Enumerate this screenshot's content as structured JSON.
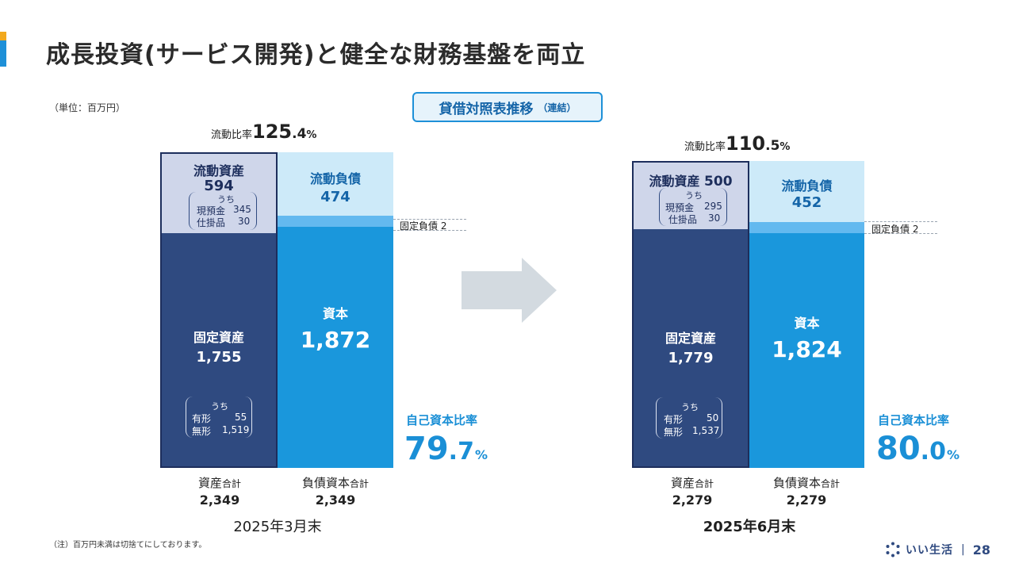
{
  "title": "成長投資(サービス開発)と健全な財務基盤を両立",
  "unit_note": "（単位：百万円）",
  "section_badge": {
    "main": "貸借対照表推移",
    "sub": "（連結）"
  },
  "labels": {
    "current_ratio": "流動比率",
    "current_assets": "流動資産",
    "current_liabilities": "流動負債",
    "fixed_assets": "固定資産",
    "fixed_liabilities": "固定負債",
    "equity": "資本",
    "of_which": "うち",
    "cash": "現預金",
    "wip": "仕掛品",
    "tangible": "有形",
    "intangible": "無形",
    "equity_ratio": "自己資本比率",
    "total_assets_main": "資産",
    "total_liab_eq_main": "負債資本",
    "total_suffix": "合計"
  },
  "colors": {
    "accent_orange": "#f2a91e",
    "accent_blue": "#1e90d8",
    "current_assets": "#cfd6ea",
    "fixed_assets": "#2f4a80",
    "current_liabilities": "#cdeaf9",
    "fixed_liabilities": "#63b9ef",
    "equity": "#1a97dc",
    "arrow": "#d3dae0"
  },
  "chart_data": {
    "type": "bar",
    "chart_kind": "balance-sheet-comparison",
    "periods": [
      {
        "period": "2025年3月末",
        "current_ratio": {
          "integer": "125",
          "fraction": ".4",
          "unit": "%"
        },
        "assets": {
          "current": {
            "value": 594,
            "display": "594",
            "cash": "345",
            "wip": "30"
          },
          "fixed": {
            "value": 1755,
            "display": "1,755",
            "tangible": "55",
            "intangible": "1,519"
          }
        },
        "liabilities_equity": {
          "current_liabilities": {
            "value": 474,
            "display": "474"
          },
          "fixed_liabilities": {
            "value": 2,
            "display": "2"
          },
          "equity": {
            "value": 1872,
            "display": "1,872"
          }
        },
        "equity_ratio": {
          "integer": "79",
          "fraction": ".7",
          "unit": "%"
        },
        "total_assets": "2,349",
        "total_liabilities_equity": "2,349"
      },
      {
        "period": "2025年6月末",
        "current_ratio": {
          "integer": "110",
          "fraction": ".5",
          "unit": "%"
        },
        "assets": {
          "current": {
            "value": 500,
            "display": "500",
            "cash": "295",
            "wip": "30"
          },
          "fixed": {
            "value": 1779,
            "display": "1,779",
            "tangible": "50",
            "intangible": "1,537"
          }
        },
        "liabilities_equity": {
          "current_liabilities": {
            "value": 452,
            "display": "452"
          },
          "fixed_liabilities": {
            "value": 2,
            "display": "2"
          },
          "equity": {
            "value": 1824,
            "display": "1,824"
          }
        },
        "equity_ratio": {
          "integer": "80",
          "fraction": ".0",
          "unit": "%"
        },
        "total_assets": "2,279",
        "total_liabilities_equity": "2,279"
      }
    ]
  },
  "footnote": "（注）百万円未満は切捨てにしております。",
  "brand": {
    "name": "いい生活",
    "separator": "|",
    "page_number": "28"
  }
}
